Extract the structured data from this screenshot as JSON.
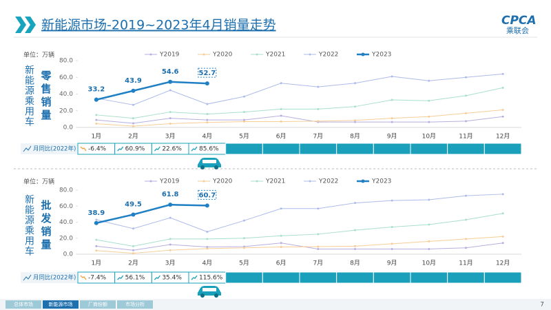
{
  "header": {
    "title": "新能源市场-2019~2023年4月销量走势",
    "logo": "CPCA",
    "logo_sub": "乘联会"
  },
  "chart_data": [
    {
      "type": "line",
      "unit": "单位：万辆",
      "side_label": "新能源乘用车",
      "metric": "零售销量",
      "categories": [
        "1月",
        "2月",
        "3月",
        "4月",
        "5月",
        "6月",
        "7月",
        "8月",
        "9月",
        "10月",
        "11月",
        "12月"
      ],
      "ylim": [
        0,
        80
      ],
      "yticks": [
        {
          "value": 0,
          "label": "0.0"
        },
        {
          "value": 20,
          "label": "20.0"
        },
        {
          "value": 40,
          "label": "40.0"
        },
        {
          "value": 60,
          "label": "60.0"
        },
        {
          "value": 80,
          "label": "80.0"
        }
      ],
      "grid": false,
      "series": [
        {
          "name": "Y2019",
          "color": "#b7aee0",
          "values": [
            9,
            5,
            11,
            9,
            9,
            14,
            6.5,
            6.5,
            6.5,
            6.5,
            7.5,
            13
          ]
        },
        {
          "name": "Y2020",
          "color": "#f6cd95",
          "values": [
            4.5,
            1.5,
            4.5,
            6,
            7,
            7,
            7.5,
            8.5,
            11,
            13,
            17,
            21
          ]
        },
        {
          "name": "Y2021",
          "color": "#a9dfcb",
          "values": [
            15,
            11,
            18.5,
            16,
            18.5,
            22,
            22,
            25,
            33,
            32,
            38,
            47.5
          ]
        },
        {
          "name": "Y2022",
          "color": "#aebbe9",
          "values": [
            35,
            27,
            44.5,
            28,
            37,
            53,
            48.6,
            53,
            61,
            55.9,
            60,
            64
          ]
        },
        {
          "name": "Y2023",
          "color": "#1f7fc4",
          "values": [
            33.2,
            43.9,
            54.6,
            52.7,
            null,
            null,
            null,
            null,
            null,
            null,
            null,
            null
          ]
        }
      ],
      "yoy": {
        "label": "月同比(2022年)",
        "values": [
          -6.4,
          60.9,
          22.6,
          85.6
        ],
        "value_labels": [
          "-6.4%",
          "60.9%",
          "22.6%",
          "85.6%"
        ]
      }
    },
    {
      "type": "line",
      "unit": "单位：万辆",
      "side_label": "新能源乘用车",
      "metric": "批发销量",
      "categories": [
        "1月",
        "2月",
        "3月",
        "4月",
        "5月",
        "6月",
        "7月",
        "8月",
        "9月",
        "10月",
        "11月",
        "12月"
      ],
      "ylim": [
        0,
        80
      ],
      "yticks": [
        {
          "value": 0,
          "label": "0.0"
        },
        {
          "value": 20,
          "label": "20.0"
        },
        {
          "value": 40,
          "label": "40.0"
        },
        {
          "value": 60,
          "label": "60.0"
        },
        {
          "value": 80,
          "label": "80.0"
        }
      ],
      "grid": false,
      "series": [
        {
          "name": "Y2019",
          "color": "#b7aee0",
          "values": [
            10,
            5,
            12,
            9,
            9.5,
            14,
            6.5,
            6.5,
            6.5,
            6.5,
            8,
            14
          ]
        },
        {
          "name": "Y2020",
          "color": "#f6cd95",
          "values": [
            4.5,
            1.2,
            5,
            7,
            8,
            9,
            9.5,
            10,
            13,
            16,
            19,
            22
          ]
        },
        {
          "name": "Y2021",
          "color": "#a9dfcb",
          "values": [
            18,
            10,
            19,
            19,
            20,
            23,
            25,
            30,
            34,
            37,
            43,
            51
          ]
        },
        {
          "name": "Y2022",
          "color": "#aebbe9",
          "values": [
            43,
            32,
            45.5,
            28,
            42,
            57,
            57,
            64,
            67,
            68,
            73,
            75
          ]
        },
        {
          "name": "Y2023",
          "color": "#1f7fc4",
          "values": [
            38.9,
            49.5,
            61.8,
            60.7,
            null,
            null,
            null,
            null,
            null,
            null,
            null,
            null
          ]
        }
      ],
      "yoy": {
        "label": "月同比(2022年)",
        "values": [
          -7.4,
          56.1,
          35.4,
          115.6
        ],
        "value_labels": [
          "-7.4%",
          "56.1%",
          "35.4%",
          "115.6%"
        ]
      }
    }
  ],
  "footer": {
    "tabs": [
      "总体市场",
      "新能源市场",
      "厂商份额",
      "市场分析"
    ],
    "page": 7
  }
}
